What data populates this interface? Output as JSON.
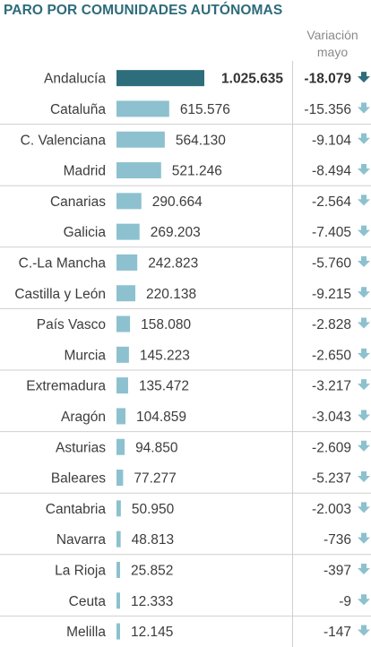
{
  "title": "PARO POR COMUNIDADES AUTÓNOMAS",
  "variation_header": [
    "Variación",
    "mayo"
  ],
  "colors": {
    "title": "#2d6b7a",
    "bar_highlight": "#2e6d7b",
    "bar": "#8dc1cf",
    "arrow_highlight": "#2e6d7b",
    "arrow": "#8dc1cf"
  },
  "arrow_icon": "down-arrow-icon",
  "chart_data": {
    "type": "bar",
    "orientation": "horizontal",
    "title": "PARO POR COMUNIDADES AUTÓNOMAS",
    "categories": [
      "Andalucía",
      "Cataluña",
      "C. Valenciana",
      "Madrid",
      "Canarias",
      "Galicia",
      "C.-La Mancha",
      "Castilla y León",
      "País Vasco",
      "Murcia",
      "Extremadura",
      "Aragón",
      "Asturias",
      "Baleares",
      "Cantabria",
      "Navarra",
      "La Rioja",
      "Ceuta",
      "Melilla"
    ],
    "values": [
      1025635,
      615576,
      564130,
      521246,
      290664,
      269203,
      242823,
      220138,
      158080,
      145223,
      135472,
      104859,
      94850,
      77277,
      50950,
      48813,
      25852,
      12333,
      12145
    ],
    "value_labels": [
      "1.025.635",
      "615.576",
      "564.130",
      "521.246",
      "290.664",
      "269.203",
      "242.823",
      "220.138",
      "158.080",
      "145.223",
      "135.472",
      "104.859",
      "94.850",
      "77.277",
      "50.950",
      "48.813",
      "25.852",
      "12.333",
      "12.145"
    ],
    "variation": [
      -18079,
      -15356,
      -9104,
      -8494,
      -2564,
      -7405,
      -5760,
      -9215,
      -2828,
      -2650,
      -3217,
      -3043,
      -2609,
      -5237,
      -2003,
      -736,
      -397,
      -9,
      -147
    ],
    "variation_labels": [
      "-18.079",
      "-15.356",
      "-9.104",
      "-8.494",
      "-2.564",
      "-7.405",
      "-5.760",
      "-9.215",
      "-2.828",
      "-2.650",
      "-3.217",
      "-3.043",
      "-2.609",
      "-5.237",
      "-2.003",
      "-736",
      "-397",
      "-9",
      "-147"
    ],
    "variation_header": "Variación mayo",
    "highlight_index": 0,
    "xlim": [
      0,
      1025635
    ]
  }
}
